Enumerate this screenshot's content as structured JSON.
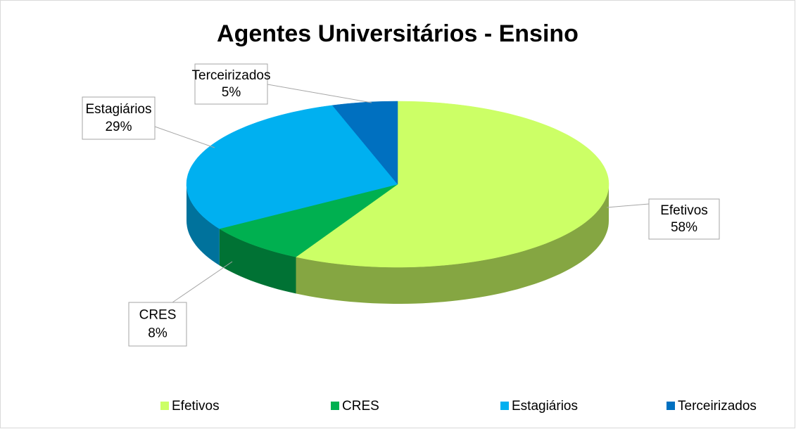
{
  "chart_data": {
    "type": "pie",
    "title": "Agentes Universitários - Ensino",
    "categories": [
      "Efetivos",
      "CRES",
      "Estagiários",
      "Terceirizados"
    ],
    "values": [
      58,
      8,
      29,
      5
    ],
    "value_labels": [
      "58%",
      "8%",
      "29%",
      "5%"
    ],
    "colors": [
      "#ccff66",
      "#00b050",
      "#00b0f0",
      "#0070c0"
    ],
    "legend": "bottom"
  }
}
